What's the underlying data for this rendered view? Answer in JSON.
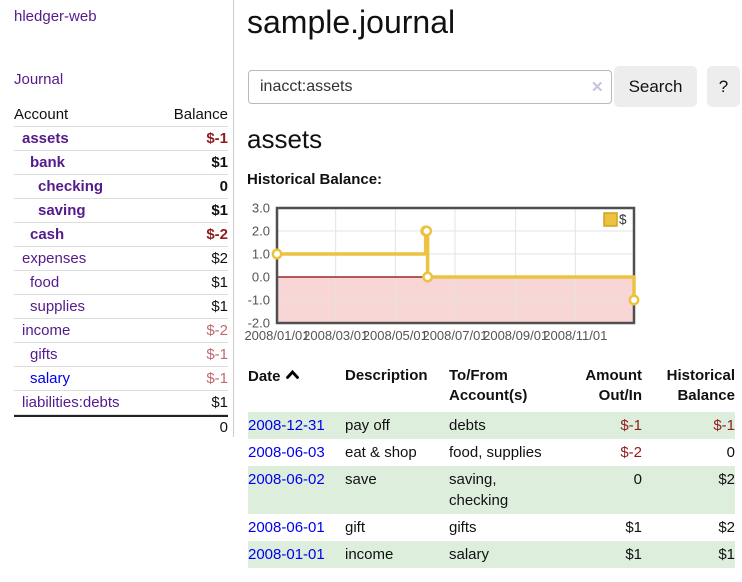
{
  "app": {
    "brand": "hledger-web"
  },
  "colors": {
    "link_purple": "#551a8b",
    "link_blue": "#0000ee",
    "negative": "#8f1d1d",
    "negative_muted": "#c0696f",
    "row_stripe_green": "#ddeedd",
    "series_yellow": "#edc240",
    "negative_region_pink": "#f9d6d6",
    "zero_line_red": "#8b0000"
  },
  "sidebar": {
    "journal_link": "Journal",
    "accounts": {
      "header": {
        "account": "Account",
        "balance": "Balance"
      },
      "rows": [
        {
          "name": "assets",
          "balance": "$-1"
        },
        {
          "name": "bank",
          "balance": "$1"
        },
        {
          "name": "checking",
          "balance": "0"
        },
        {
          "name": "saving",
          "balance": "$1"
        },
        {
          "name": "cash",
          "balance": "$-2"
        },
        {
          "name": "expenses",
          "balance": "$2"
        },
        {
          "name": "food",
          "balance": "$1"
        },
        {
          "name": "supplies",
          "balance": "$1"
        },
        {
          "name": "income",
          "balance": "$-2"
        },
        {
          "name": "gifts",
          "balance": "$-1"
        },
        {
          "name": "salary",
          "balance": "$-1"
        },
        {
          "name": "liabilities:debts",
          "balance": "$1"
        }
      ],
      "total": "0"
    }
  },
  "main": {
    "title": "sample.journal",
    "search": {
      "value": "inacct:assets",
      "clear": "✕",
      "button": "Search",
      "help": "?"
    },
    "heading": "assets",
    "chart_title": "Historical Balance:"
  },
  "chart_data": {
    "type": "line",
    "style": "steps",
    "title": "Historical Balance",
    "legend": {
      "label": "$",
      "position": "top-right"
    },
    "grid": true,
    "ylim": [
      -2,
      3
    ],
    "xlim_days": [
      0,
      365
    ],
    "yticks": [
      {
        "label": "3.0",
        "value": 3
      },
      {
        "label": "2.0",
        "value": 2
      },
      {
        "label": "1.0",
        "value": 1
      },
      {
        "label": "0.0",
        "value": 0
      },
      {
        "label": "-1.0",
        "value": -1
      },
      {
        "label": "-2.0",
        "value": -2
      }
    ],
    "xticks": [
      {
        "label": "2008/01/01",
        "day": 0
      },
      {
        "label": "2008/03/01",
        "day": 60
      },
      {
        "label": "2008/05/01",
        "day": 121
      },
      {
        "label": "2008/07/01",
        "day": 182
      },
      {
        "label": "2008/09/01",
        "day": 244
      },
      {
        "label": "2008/11/01",
        "day": 305
      }
    ],
    "series": [
      {
        "name": "$",
        "color": "#edc240",
        "points": [
          {
            "date": "2008-01-01",
            "day": 0,
            "value": 1
          },
          {
            "date": "2008-06-01",
            "day": 152,
            "value": 2
          },
          {
            "date": "2008-06-02",
            "day": 153,
            "value": 2
          },
          {
            "date": "2008-06-03",
            "day": 154,
            "value": 0
          },
          {
            "date": "2008-12-31",
            "day": 365,
            "value": -1
          }
        ]
      }
    ],
    "negative_region_color": "#f9d6d6",
    "zero_line_color": "#8b0000"
  },
  "register": {
    "headers": {
      "date": "Date",
      "description": "Description",
      "accounts": "To/From Account(s)",
      "amount": "Amount Out/In",
      "balance": "Historical Balance"
    },
    "rows": [
      {
        "date": "2008-12-31",
        "description": "pay off",
        "accounts": "debts",
        "amount": "$-1",
        "balance": "$-1"
      },
      {
        "date": "2008-06-03",
        "description": "eat & shop",
        "accounts": "food, supplies",
        "amount": "$-2",
        "balance": "0"
      },
      {
        "date": "2008-06-02",
        "description": "save",
        "accounts": "saving, checking",
        "amount": "0",
        "balance": "$2"
      },
      {
        "date": "2008-06-01",
        "description": "gift",
        "accounts": "gifts",
        "amount": "$1",
        "balance": "$2"
      },
      {
        "date": "2008-01-01",
        "description": "income",
        "accounts": "salary",
        "amount": "$1",
        "balance": "$1"
      }
    ]
  }
}
